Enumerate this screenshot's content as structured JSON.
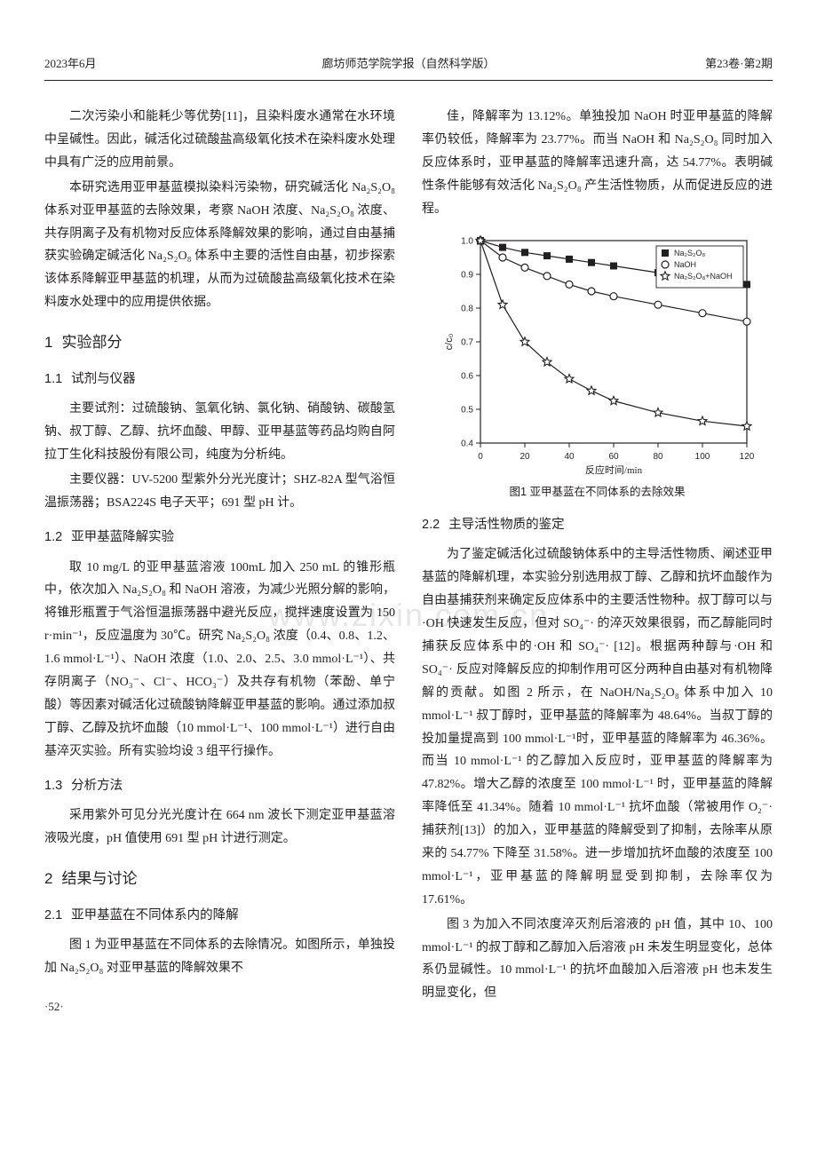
{
  "header": {
    "left": "2023年6月",
    "center": "廊坊师范学院学报（自然科学版）",
    "right": "第23卷·第2期"
  },
  "watermark": "www.zixin.com.cn",
  "left_col": {
    "p1": "二次污染小和能耗少等优势[11]，且染料废水通常在水环境中呈碱性。因此，碱活化过硫酸盐高级氧化技术在染料废水处理中具有广泛的应用前景。",
    "p2": "本研究选用亚甲基蓝模拟染料污染物，研究碱活化 Na₂S₂O₈ 体系对亚甲基蓝的去除效果，考察 NaOH 浓度、Na₂S₂O₈ 浓度、共存阴离子及有机物对反应体系降解效果的影响，通过自由基捕获实验确定碱活化 Na₂S₂O₈ 体系中主要的活性自由基，初步探索该体系降解亚甲基蓝的机理，从而为过硫酸盐高级氧化技术在染料废水处理中的应用提供依据。",
    "h1_1": {
      "num": "1",
      "title": "实验部分"
    },
    "h2_11": {
      "num": "1.1",
      "title": "试剂与仪器"
    },
    "p3": "主要试剂：过硫酸钠、氢氧化钠、氯化钠、硝酸钠、碳酸氢钠、叔丁醇、乙醇、抗坏血酸、甲醇、亚甲基蓝等药品均购自阿拉丁生化科技股份有限公司，纯度为分析纯。",
    "p4": "主要仪器：UV-5200 型紫外分光光度计；SHZ-82A 型气浴恒温振荡器；BSA224S 电子天平；691 型 pH 计。",
    "h2_12": {
      "num": "1.2",
      "title": "亚甲基蓝降解实验"
    },
    "p5": "取 10 mg/L 的亚甲基蓝溶液 100mL 加入 250 mL 的锥形瓶中，依次加入 Na₂S₂O₈ 和 NaOH 溶液，为减少光照分解的影响，将锥形瓶置于气浴恒温振荡器中避光反应，搅拌速度设置为 150 r·min⁻¹，反应温度为 30℃。研究 Na₂S₂O₈ 浓度（0.4、0.8、1.2、1.6 mmol·L⁻¹）、NaOH 浓度（1.0、2.0、2.5、3.0 mmol·L⁻¹）、共存阴离子（NO₃⁻、Cl⁻、HCO₃⁻）及共存有机物（苯酚、单宁酸）等因素对碱活化过硫酸钠降解亚甲基蓝的影响。通过添加叔丁醇、乙醇及抗坏血酸（10 mmol·L⁻¹、100 mmol·L⁻¹）进行自由基淬灭实验。所有实验均设 3 组平行操作。",
    "h2_13": {
      "num": "1.3",
      "title": "分析方法"
    },
    "p6": "采用紫外可见分光光度计在 664 nm 波长下测定亚甲基蓝溶液吸光度，pH 值使用 691 型 pH 计进行测定。",
    "h1_2": {
      "num": "2",
      "title": "结果与讨论"
    },
    "h2_21": {
      "num": "2.1",
      "title": "亚甲基蓝在不同体系内的降解"
    },
    "p7": "图 1 为亚甲基蓝在不同体系的去除情况。如图所示，单独投加 Na₂S₂O₈ 对亚甲基蓝的降解效果不"
  },
  "right_col": {
    "p1": "佳，降解率为 13.12%。单独投加 NaOH 时亚甲基蓝的降解率仍较低，降解率为 23.77%。而当 NaOH 和 Na₂S₂O₈ 同时加入反应体系时，亚甲基蓝的降解率迅速升高，达 54.77%。表明碱性条件能够有效活化 Na₂S₂O₈ 产生活性物质，从而促进反应的进程。",
    "fig1_caption": "图1  亚甲基蓝在不同体系的去除效果",
    "h2_22": {
      "num": "2.2",
      "title": "主导活性物质的鉴定"
    },
    "p2": "为了鉴定碱活化过硫酸钠体系中的主导活性物质、阐述亚甲基蓝的降解机理，本实验分别选用叔丁醇、乙醇和抗坏血酸作为自由基捕获剂来确定反应体系中的主要活性物种。叔丁醇可以与·OH 快速发生反应，但对 SO₄⁻· 的淬灭效果很弱，而乙醇能同时捕获反应体系中的·OH 和 SO₄⁻· [12]。根据两种醇与·OH 和 SO₄⁻· 反应对降解反应的抑制作用可区分两种自由基对有机物降解的贡献。如图 2 所示，在 NaOH/Na₂S₂O₈ 体系中加入 10 mmol·L⁻¹ 叔丁醇时，亚甲基蓝的降解率为 48.64%。当叔丁醇的投加量提高到 100 mmol·L⁻¹时，亚甲基蓝的降解率为 46.36%。而当 10 mmol·L⁻¹ 的乙醇加入反应时，亚甲基蓝的降解率为 47.82%。增大乙醇的浓度至 100 mmol·L⁻¹ 时，亚甲基蓝的降解率降低至 41.34%。随着 10 mmol·L⁻¹ 抗坏血酸（常被用作 O₂⁻· 捕获剂[13]）的加入，亚甲基蓝的降解受到了抑制，去除率从原来的 54.77% 下降至 31.58%。进一步增加抗坏血酸的浓度至 100 mmol·L⁻¹，亚甲基蓝的降解明显受到抑制，去除率仅为 17.61%。",
    "p3": "图 3 为加入不同浓度淬灭剂后溶液的 pH 值，其中 10、100 mmol·L⁻¹ 的叔丁醇和乙醇加入后溶液 pH 未发生明显变化，总体系仍显碱性。10 mmol·L⁻¹ 的抗坏血酸加入后溶液 pH 也未发生明显变化，但"
  },
  "pagenum": "·52·",
  "fig1": {
    "type": "line",
    "xlabel": "反应时间/min",
    "ylabel": "c/c₀",
    "xlim": [
      0,
      120
    ],
    "ylim": [
      0.4,
      1.0
    ],
    "xtick_step": 20,
    "ytick_step": 0.1,
    "background_color": "#ffffff",
    "axis_color": "#231f20",
    "tick_fontsize": 10,
    "label_fontsize": 11,
    "legend_fontsize": 9,
    "legend_position": "top-right",
    "series": [
      {
        "name": "Na₂S₂O₈",
        "marker": "square-filled",
        "color": "#231f20",
        "x": [
          0,
          10,
          20,
          30,
          40,
          50,
          60,
          80,
          100,
          120
        ],
        "y": [
          1.0,
          0.98,
          0.965,
          0.955,
          0.945,
          0.935,
          0.925,
          0.905,
          0.89,
          0.87
        ]
      },
      {
        "name": "NaOH",
        "marker": "circle-open",
        "color": "#231f20",
        "x": [
          0,
          10,
          20,
          30,
          40,
          50,
          60,
          80,
          100,
          120
        ],
        "y": [
          1.0,
          0.95,
          0.92,
          0.895,
          0.87,
          0.85,
          0.835,
          0.81,
          0.785,
          0.76
        ]
      },
      {
        "name": "Na₂S₂O₈+NaOH",
        "marker": "star-open",
        "color": "#231f20",
        "x": [
          0,
          10,
          20,
          30,
          40,
          50,
          60,
          80,
          100,
          120
        ],
        "y": [
          1.0,
          0.81,
          0.7,
          0.64,
          0.59,
          0.555,
          0.525,
          0.49,
          0.465,
          0.45
        ]
      }
    ]
  }
}
